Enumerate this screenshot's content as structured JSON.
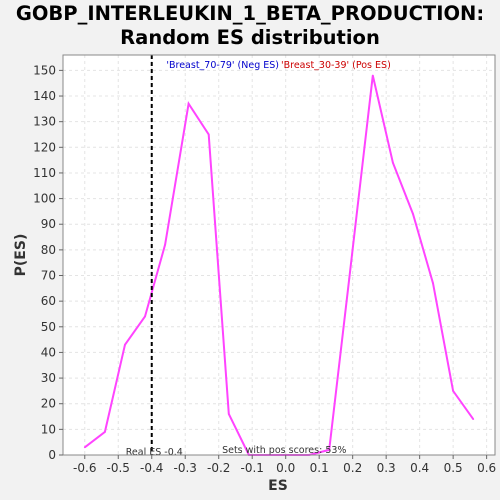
{
  "chart_data": {
    "type": "line",
    "title_line1": "GOBP_INTERLEUKIN_1_BETA_PRODUCTION:",
    "title_line2": "Random ES distribution",
    "xlabel": "ES",
    "ylabel": "P(ES)",
    "xlim": [
      -0.665,
      0.625
    ],
    "ylim": [
      0,
      156
    ],
    "x_ticks": [
      -0.6,
      -0.5,
      -0.4,
      -0.3,
      -0.2,
      -0.1,
      0.0,
      0.1,
      0.2,
      0.3,
      0.4,
      0.5,
      0.6
    ],
    "x_tick_labels": [
      "-0.6",
      "-0.5",
      "-0.4",
      "-0.3",
      "-0.2",
      "-0.1",
      "0.0",
      "0.1",
      "0.2",
      "0.3",
      "0.4",
      "0.5",
      "0.6"
    ],
    "y_ticks": [
      0,
      10,
      20,
      30,
      40,
      50,
      60,
      70,
      80,
      90,
      100,
      110,
      120,
      130,
      140,
      150
    ],
    "y_tick_labels": [
      "0",
      "10",
      "20",
      "30",
      "40",
      "50",
      "60",
      "70",
      "80",
      "90",
      "100",
      "110",
      "120",
      "130",
      "140",
      "150"
    ],
    "grid": true,
    "series": [
      {
        "color": "#ff44ff",
        "x": [
          -0.6,
          -0.54,
          -0.48,
          -0.42,
          -0.36,
          -0.29,
          -0.23,
          -0.17,
          -0.11,
          -0.05,
          0.01,
          0.07,
          0.13,
          0.19,
          0.26,
          0.32,
          0.38,
          0.44,
          0.5,
          0.56
        ],
        "y": [
          3,
          9,
          43,
          54,
          82,
          137,
          125,
          16,
          0,
          0,
          0,
          0,
          2,
          69,
          148,
          114,
          94,
          67,
          25,
          14
        ]
      }
    ],
    "real_es": {
      "value": -0.4,
      "label": "Real ES -0.4",
      "color": "#000000"
    },
    "pos_scores_text": "Sets with pos scores: 53%",
    "neg_label": {
      "text": "'Breast_70-79' (Neg ES)",
      "color": "#0000cc"
    },
    "pos_label": {
      "text": "'Breast_30-39' (Pos ES)",
      "color": "#cc0000"
    }
  }
}
